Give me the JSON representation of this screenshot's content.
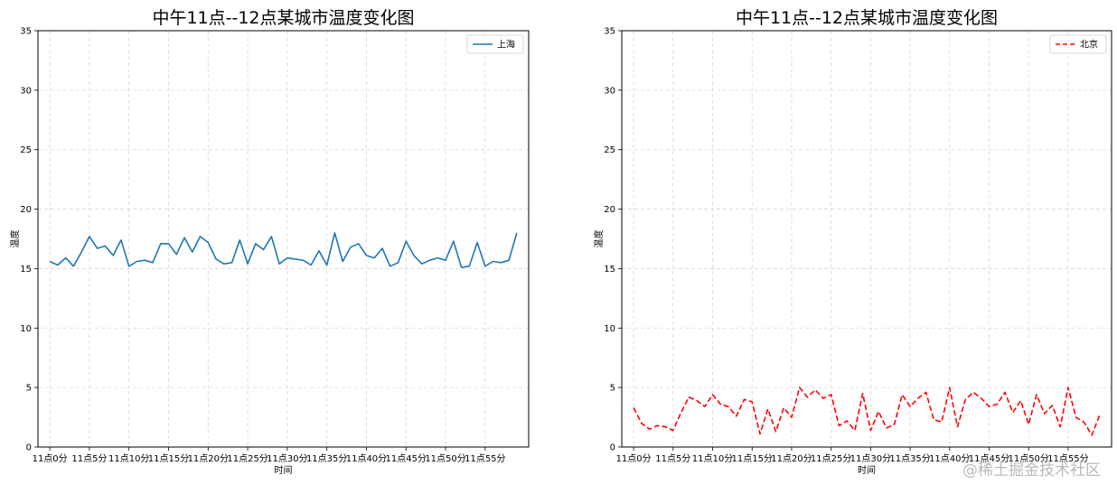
{
  "chart_data": [
    {
      "type": "line",
      "title": "中午11点--12点某城市温度变化图",
      "xlabel": "时间",
      "ylabel": "温度",
      "ylim": [
        0,
        35
      ],
      "yticks": [
        0,
        5,
        10,
        15,
        20,
        25,
        30,
        35
      ],
      "grid": true,
      "legend_position": "top-right",
      "x": [
        0,
        1,
        2,
        3,
        4,
        5,
        6,
        7,
        8,
        9,
        10,
        11,
        12,
        13,
        14,
        15,
        16,
        17,
        18,
        19,
        20,
        21,
        22,
        23,
        24,
        25,
        26,
        27,
        28,
        29,
        30,
        31,
        32,
        33,
        34,
        35,
        36,
        37,
        38,
        39,
        40,
        41,
        42,
        43,
        44,
        45,
        46,
        47,
        48,
        49,
        50,
        51,
        52,
        53,
        54,
        55,
        56,
        57,
        58,
        59
      ],
      "xtick_labels": [
        "11点0分",
        "11点5分",
        "11点10分",
        "11点15分",
        "11点20分",
        "11点25分",
        "11点30分",
        "11点35分",
        "11点40分",
        "11点45分",
        "11点50分",
        "11点55分"
      ],
      "series": [
        {
          "name": "上海",
          "color": "#1f77b4",
          "linestyle": "solid",
          "values": [
            15.6,
            15.3,
            15.9,
            15.2,
            16.4,
            17.7,
            16.7,
            16.9,
            16.1,
            17.4,
            15.2,
            15.6,
            15.7,
            15.5,
            17.1,
            17.1,
            16.2,
            17.6,
            16.4,
            17.7,
            17.2,
            15.8,
            15.4,
            15.5,
            17.4,
            15.4,
            17.1,
            16.6,
            17.7,
            15.4,
            15.9,
            15.8,
            15.7,
            15.3,
            16.5,
            15.3,
            18.0,
            15.6,
            16.8,
            17.1,
            16.1,
            15.9,
            16.7,
            15.2,
            15.5,
            17.3,
            16.1,
            15.4,
            15.7,
            15.9,
            15.7,
            17.3,
            15.1,
            15.2,
            17.2,
            15.2,
            15.6,
            15.5,
            15.7,
            18.0
          ]
        }
      ]
    },
    {
      "type": "line",
      "title": "中午11点--12点某城市温度变化图",
      "xlabel": "时间",
      "ylabel": "温度",
      "ylim": [
        0,
        35
      ],
      "yticks": [
        0,
        5,
        10,
        15,
        20,
        25,
        30,
        35
      ],
      "grid": true,
      "legend_position": "top-right",
      "x": [
        0,
        1,
        2,
        3,
        4,
        5,
        6,
        7,
        8,
        9,
        10,
        11,
        12,
        13,
        14,
        15,
        16,
        17,
        18,
        19,
        20,
        21,
        22,
        23,
        24,
        25,
        26,
        27,
        28,
        29,
        30,
        31,
        32,
        33,
        34,
        35,
        36,
        37,
        38,
        39,
        40,
        41,
        42,
        43,
        44,
        45,
        46,
        47,
        48,
        49,
        50,
        51,
        52,
        53,
        54,
        55,
        56,
        57,
        58,
        59
      ],
      "xtick_labels": [
        "11点0分",
        "11点5分",
        "11点10分",
        "11点15分",
        "11点20分",
        "11点25分",
        "11点30分",
        "11点35分",
        "11点40分",
        "11点45分",
        "11点50分",
        "11点55分"
      ],
      "series": [
        {
          "name": "北京",
          "color": "#ff0000",
          "linestyle": "dashed",
          "values": [
            3.3,
            2.0,
            1.5,
            1.8,
            1.7,
            1.4,
            2.9,
            4.2,
            3.9,
            3.4,
            4.4,
            3.6,
            3.4,
            2.6,
            4.0,
            3.8,
            1.1,
            3.2,
            1.3,
            3.3,
            2.5,
            5.0,
            4.2,
            4.8,
            4.1,
            4.4,
            1.8,
            2.2,
            1.4,
            4.5,
            1.4,
            3.0,
            1.6,
            1.9,
            4.4,
            3.4,
            4.1,
            4.6,
            2.3,
            2.1,
            5.0,
            1.7,
            4.0,
            4.6,
            4.1,
            3.4,
            3.6,
            4.6,
            2.9,
            3.9,
            1.9,
            4.4,
            2.8,
            3.5,
            1.7,
            5.0,
            2.5,
            2.1,
            1.0,
            2.7
          ]
        }
      ]
    }
  ],
  "watermark": "@稀土掘金技术社区"
}
